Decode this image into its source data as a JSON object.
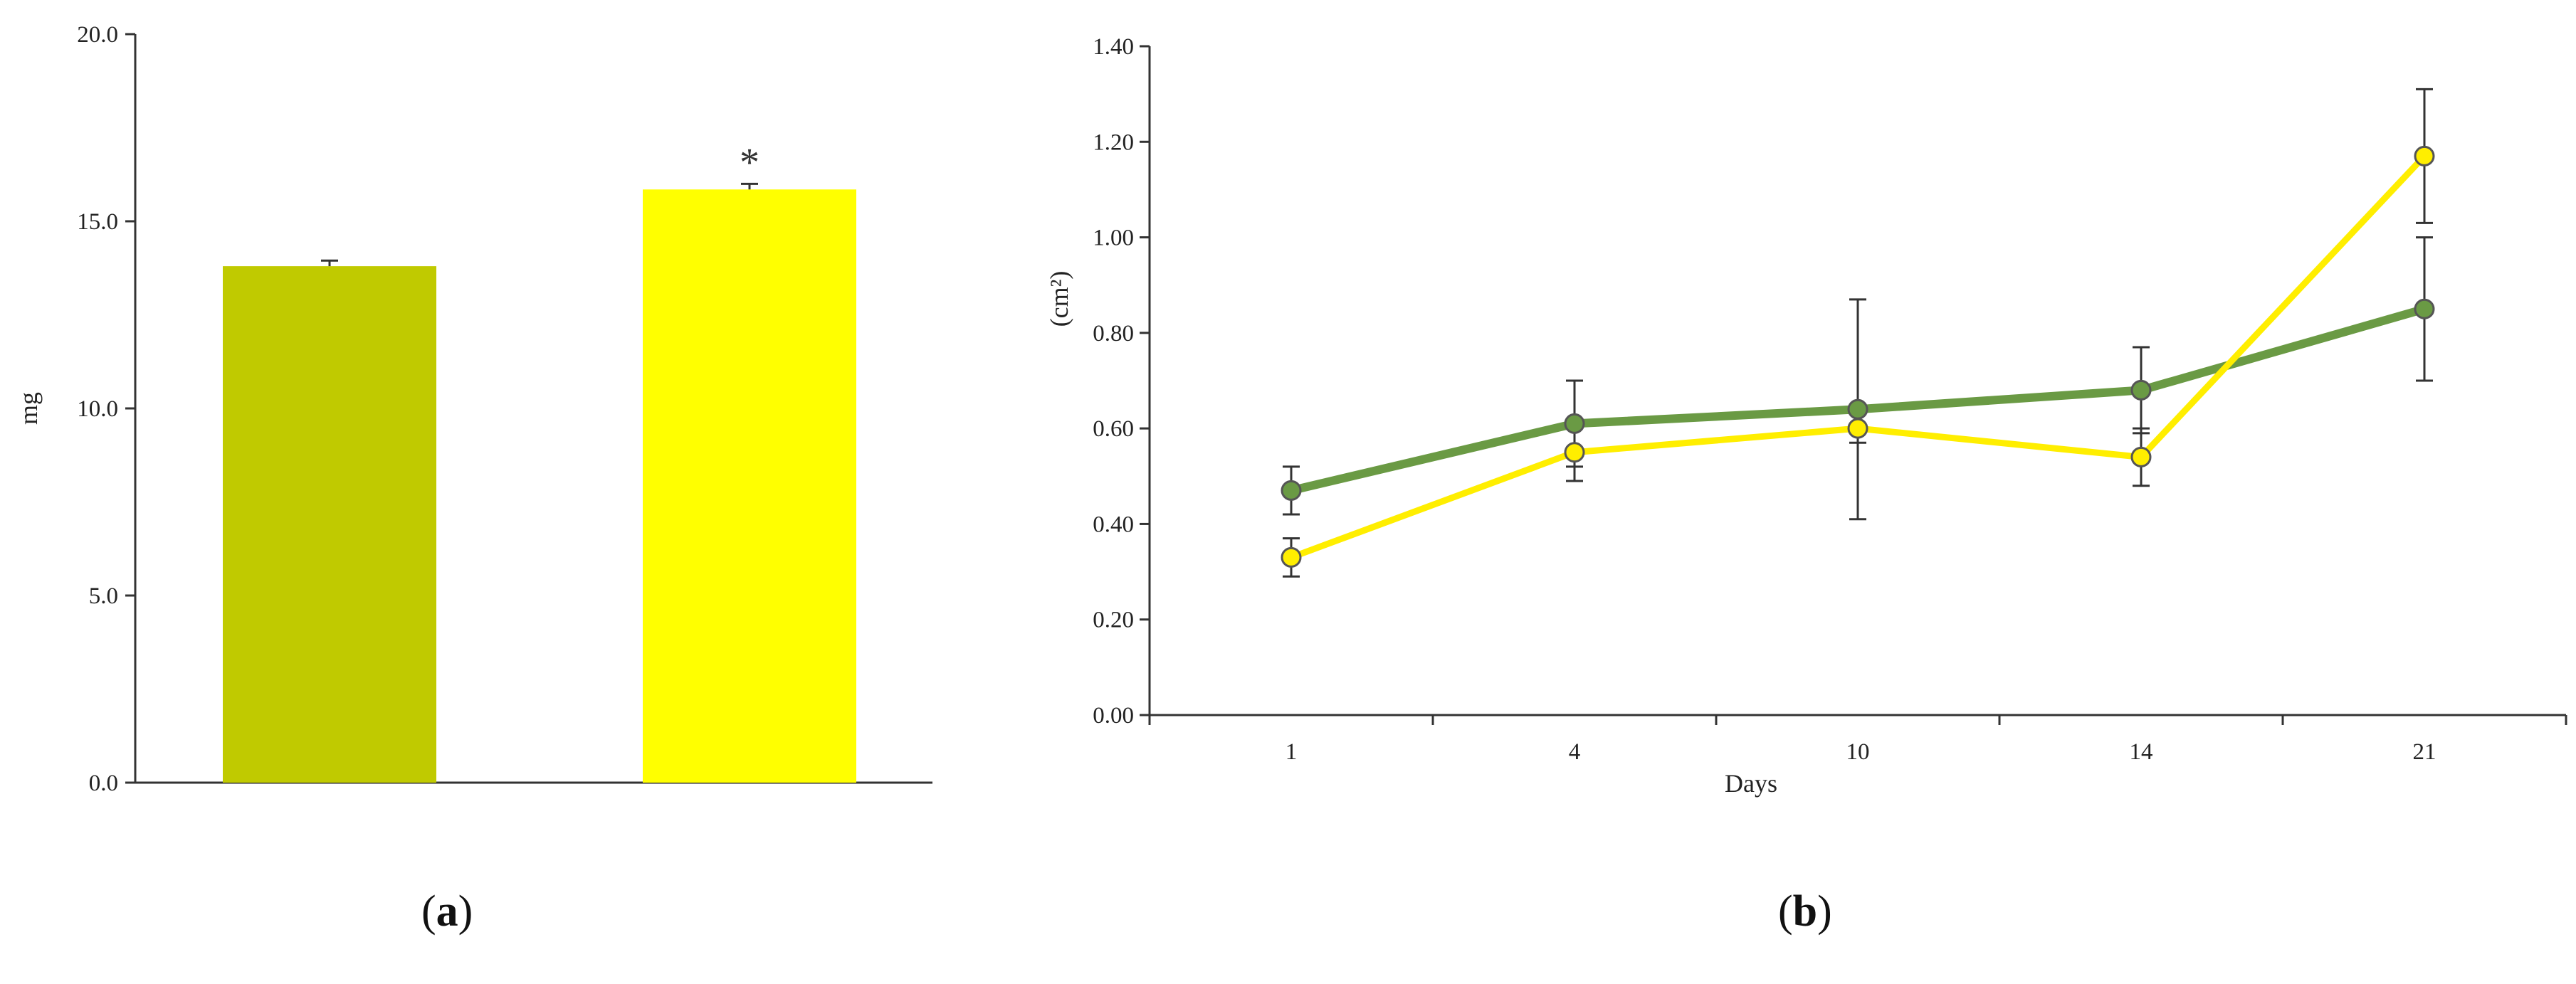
{
  "chart_data": [
    {
      "id": "a",
      "type": "bar",
      "title": "",
      "xlabel": "",
      "ylabel": "mg",
      "ylim": [
        0,
        20
      ],
      "yticks": [
        0,
        5,
        10,
        15,
        20
      ],
      "ytick_labels": [
        "0.0",
        "5.0",
        "10.0",
        "15.0",
        "20.0"
      ],
      "categories": [
        "",
        ""
      ],
      "values": [
        13.8,
        15.85
      ],
      "errors": [
        0.15,
        0.15
      ],
      "colors": [
        "#c0ca00",
        "#ffff00"
      ],
      "annotations": [
        "",
        "*"
      ],
      "grid": false,
      "legend": "none"
    },
    {
      "id": "b",
      "type": "line",
      "title": "",
      "xlabel": "Days",
      "ylabel": "(cm²)",
      "ylim": [
        0,
        1.4
      ],
      "yticks": [
        0,
        0.2,
        0.4,
        0.6,
        0.8,
        1.0,
        1.2,
        1.4
      ],
      "ytick_labels": [
        "0.00",
        "0.20",
        "0.40",
        "0.60",
        "0.80",
        "1.00",
        "1.20",
        "1.40"
      ],
      "categories": [
        "1",
        "4",
        "10",
        "14",
        "21"
      ],
      "series": [
        {
          "values": [
            0.47,
            0.61,
            0.64,
            0.68,
            0.85
          ],
          "errors": [
            0.05,
            0.09,
            0.23,
            0.09,
            0.15
          ],
          "color": "#6a9a44",
          "marker_fill": "#6a9a44"
        },
        {
          "values": [
            0.33,
            0.55,
            0.6,
            0.54,
            1.17
          ],
          "errors": [
            0.04,
            0.06,
            0.03,
            0.06,
            0.14
          ],
          "color": "#ffee00",
          "marker_fill": "#ffee00"
        }
      ],
      "grid": false,
      "legend": "none"
    }
  ],
  "captions": [
    {
      "open": "(",
      "letter": "a",
      "close": ")"
    },
    {
      "open": "(",
      "letter": "b",
      "close": ")"
    }
  ]
}
